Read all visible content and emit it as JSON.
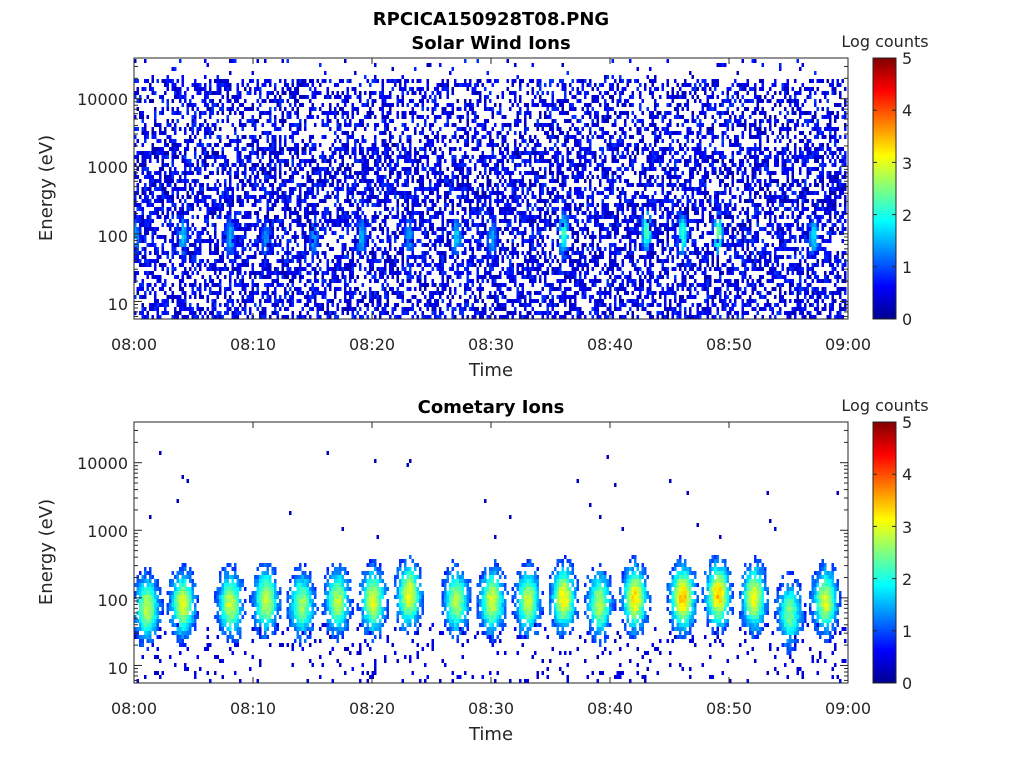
{
  "figure_title": "RPCICA150928T08.PNG",
  "chart_data": [
    {
      "type": "heatmap",
      "title": "Solar Wind Ions",
      "xlabel": "Time",
      "ylabel": "Energy (eV)",
      "x_ticks": [
        "08:00",
        "08:10",
        "08:20",
        "08:30",
        "08:40",
        "08:50",
        "09:00"
      ],
      "x_range": [
        "08:00",
        "09:00"
      ],
      "y_scale": "log",
      "y_ticks": [
        10,
        100,
        1000,
        10000
      ],
      "y_tick_labels": [
        "10",
        "100",
        "1000",
        "10000"
      ],
      "y_range": [
        5.5,
        40000
      ],
      "colorbar": {
        "label": "Log counts",
        "range": [
          0,
          5
        ],
        "ticks": [
          "0",
          "1",
          "2",
          "3",
          "4",
          "5"
        ],
        "colormap": "jet"
      },
      "structure": {
        "background_counts_log_range": [
          0,
          1
        ],
        "low_energy_band_eV": [
          8,
          150
        ],
        "bursts": [
          {
            "time": "08:00",
            "peak_eV": 90,
            "log_counts": 1.3
          },
          {
            "time": "08:04",
            "peak_eV": 90,
            "log_counts": 1.5
          },
          {
            "time": "08:08",
            "peak_eV": 90,
            "log_counts": 1.4
          },
          {
            "time": "08:11",
            "peak_eV": 80,
            "log_counts": 1.2
          },
          {
            "time": "08:15",
            "peak_eV": 90,
            "log_counts": 1.3
          },
          {
            "time": "08:19",
            "peak_eV": 90,
            "log_counts": 1.4
          },
          {
            "time": "08:23",
            "peak_eV": 90,
            "log_counts": 1.3
          },
          {
            "time": "08:27",
            "peak_eV": 90,
            "log_counts": 1.5
          },
          {
            "time": "08:30",
            "peak_eV": 90,
            "log_counts": 1.3
          },
          {
            "time": "08:36",
            "peak_eV": 100,
            "log_counts": 2.0
          },
          {
            "time": "08:43",
            "peak_eV": 110,
            "log_counts": 2.1
          },
          {
            "time": "08:46",
            "peak_eV": 100,
            "log_counts": 2.0
          },
          {
            "time": "08:49",
            "peak_eV": 100,
            "log_counts": 2.2
          },
          {
            "time": "08:57",
            "peak_eV": 90,
            "log_counts": 1.6
          }
        ]
      }
    },
    {
      "type": "heatmap",
      "title": "Cometary Ions",
      "xlabel": "Time",
      "ylabel": "Energy (eV)",
      "x_ticks": [
        "08:00",
        "08:10",
        "08:20",
        "08:30",
        "08:40",
        "08:50",
        "09:00"
      ],
      "x_range": [
        "08:00",
        "09:00"
      ],
      "y_scale": "log",
      "y_ticks": [
        10,
        100,
        1000,
        10000
      ],
      "y_tick_labels": [
        "10",
        "100",
        "1000",
        "10000"
      ],
      "y_range": [
        5.5,
        40000
      ],
      "colorbar": {
        "label": "Log counts",
        "range": [
          0,
          5
        ],
        "ticks": [
          "0",
          "1",
          "2",
          "3",
          "4",
          "5"
        ],
        "colormap": "jet"
      },
      "structure": {
        "energy_band_eV": [
          8,
          600
        ],
        "bursts": [
          {
            "time": "08:01",
            "peak_eV": 70,
            "log_counts": 2.2
          },
          {
            "time": "08:04",
            "peak_eV": 80,
            "log_counts": 2.4
          },
          {
            "time": "08:08",
            "peak_eV": 80,
            "log_counts": 2.3
          },
          {
            "time": "08:11",
            "peak_eV": 90,
            "log_counts": 2.3
          },
          {
            "time": "08:14",
            "peak_eV": 80,
            "log_counts": 2.1
          },
          {
            "time": "08:17",
            "peak_eV": 90,
            "log_counts": 2.2
          },
          {
            "time": "08:20",
            "peak_eV": 90,
            "log_counts": 2.4
          },
          {
            "time": "08:23",
            "peak_eV": 110,
            "log_counts": 2.5
          },
          {
            "time": "08:27",
            "peak_eV": 90,
            "log_counts": 2.2
          },
          {
            "time": "08:30",
            "peak_eV": 90,
            "log_counts": 2.4
          },
          {
            "time": "08:33",
            "peak_eV": 90,
            "log_counts": 2.3
          },
          {
            "time": "08:36",
            "peak_eV": 100,
            "log_counts": 2.6
          },
          {
            "time": "08:39",
            "peak_eV": 80,
            "log_counts": 2.2
          },
          {
            "time": "08:42",
            "peak_eV": 100,
            "log_counts": 2.7
          },
          {
            "time": "08:46",
            "peak_eV": 100,
            "log_counts": 2.9
          },
          {
            "time": "08:49",
            "peak_eV": 110,
            "log_counts": 2.8
          },
          {
            "time": "08:52",
            "peak_eV": 100,
            "log_counts": 2.5
          },
          {
            "time": "08:55",
            "peak_eV": 60,
            "log_counts": 1.9
          },
          {
            "time": "08:58",
            "peak_eV": 90,
            "log_counts": 2.4
          }
        ]
      }
    }
  ]
}
